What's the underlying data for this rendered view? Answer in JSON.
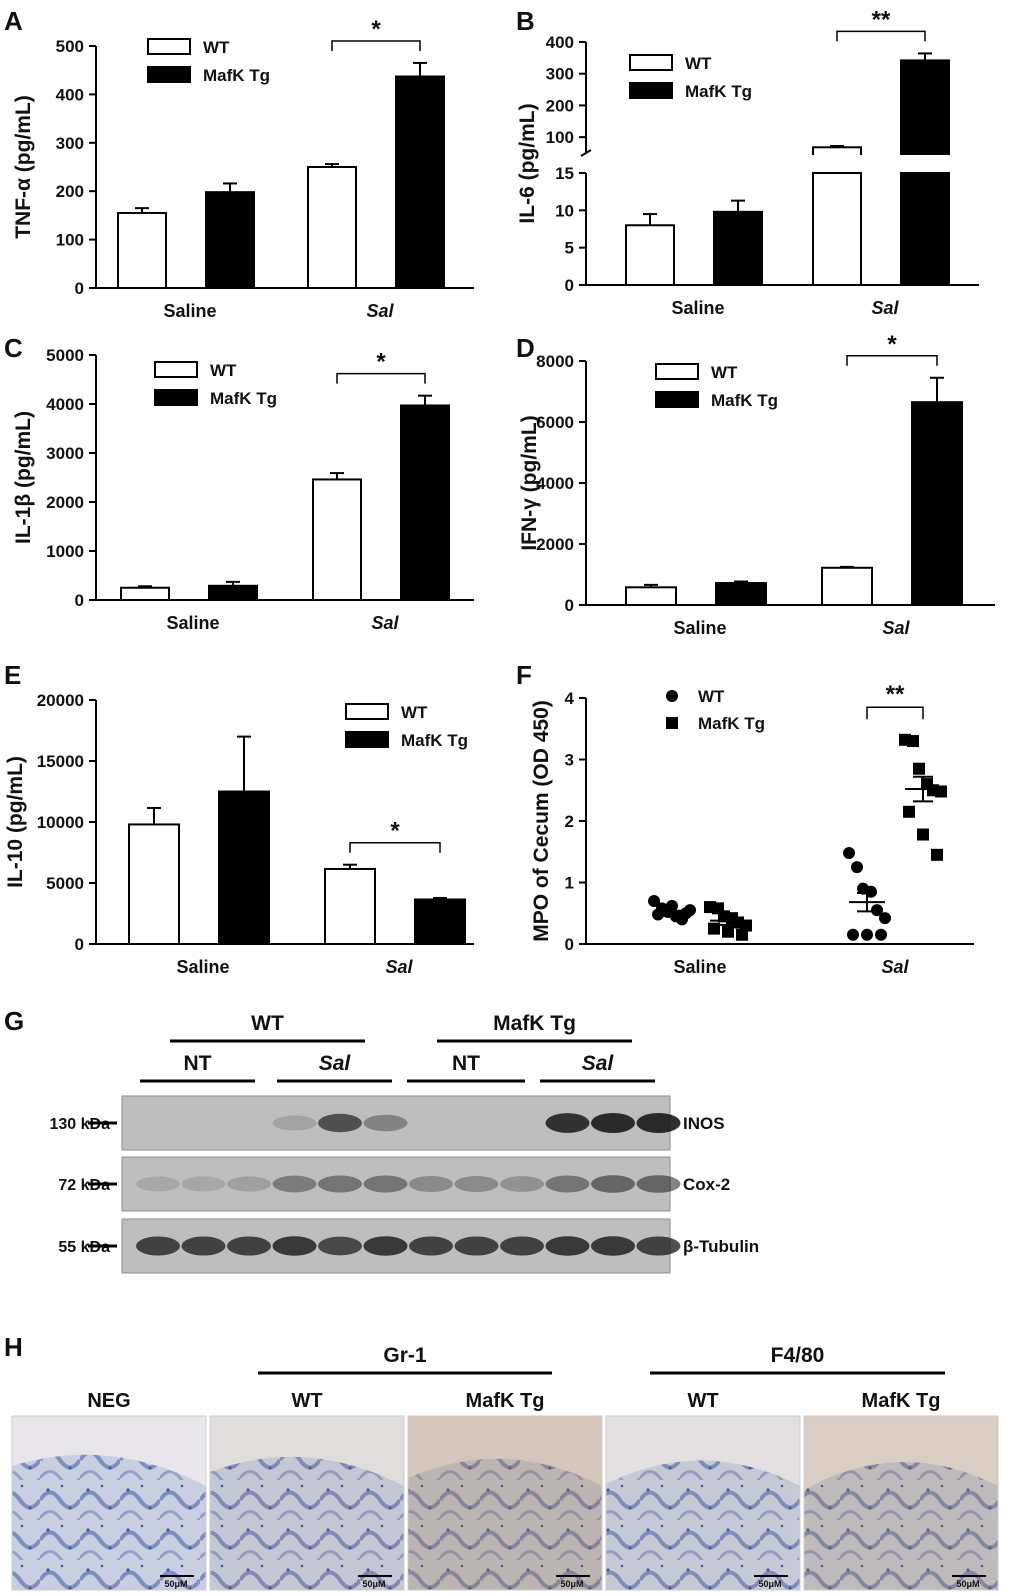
{
  "chart_data": [
    {
      "panel": "A",
      "type": "bar",
      "ylabel": "TNF-α (pg/mL)",
      "categories": [
        "Saline",
        "Sal"
      ],
      "legend": [
        "WT",
        "MafK Tg"
      ],
      "ylim": [
        0,
        500
      ],
      "yticks": [
        0,
        100,
        200,
        300,
        400,
        500
      ],
      "series": [
        {
          "name": "WT",
          "values": [
            155,
            250
          ],
          "errors": [
            10,
            6
          ],
          "fill": "#ffffff"
        },
        {
          "name": "MafK Tg",
          "values": [
            198,
            437
          ],
          "errors": [
            18,
            28
          ],
          "fill": "#000000"
        }
      ],
      "significance": [
        {
          "category": "Sal",
          "label": "*"
        }
      ]
    },
    {
      "panel": "B",
      "type": "bar",
      "ylabel": "IL-6 (pg/mL)",
      "categories": [
        "Saline",
        "Sal"
      ],
      "legend": [
        "WT",
        "MafK Tg"
      ],
      "broken_axis": {
        "lower": [
          0,
          15
        ],
        "upper": [
          50,
          400
        ]
      },
      "yticks_lower": [
        0,
        5,
        10,
        15
      ],
      "yticks_upper": [
        100,
        200,
        300,
        400
      ],
      "series": [
        {
          "name": "WT",
          "values": [
            8,
            68
          ],
          "errors": [
            1.5,
            4
          ],
          "fill": "#ffffff"
        },
        {
          "name": "MafK Tg",
          "values": [
            9.8,
            342
          ],
          "errors": [
            1.5,
            22
          ],
          "fill": "#000000"
        }
      ],
      "significance": [
        {
          "category": "Sal",
          "label": "**"
        }
      ]
    },
    {
      "panel": "C",
      "type": "bar",
      "ylabel": "IL-1β (pg/mL)",
      "categories": [
        "Saline",
        "Sal"
      ],
      "legend": [
        "WT",
        "MafK Tg"
      ],
      "ylim": [
        0,
        5000
      ],
      "yticks": [
        0,
        1000,
        2000,
        3000,
        4000,
        5000
      ],
      "series": [
        {
          "name": "WT",
          "values": [
            250,
            2460
          ],
          "errors": [
            30,
            130
          ],
          "fill": "#ffffff"
        },
        {
          "name": "MafK Tg",
          "values": [
            290,
            3970
          ],
          "errors": [
            80,
            200
          ],
          "fill": "#000000"
        }
      ],
      "significance": [
        {
          "category": "Sal",
          "label": "*"
        }
      ]
    },
    {
      "panel": "D",
      "type": "bar",
      "ylabel": "IFN-γ (pg/mL)",
      "categories": [
        "Saline",
        "Sal"
      ],
      "legend": [
        "WT",
        "MafK Tg"
      ],
      "ylim": [
        0,
        8000
      ],
      "yticks": [
        0,
        2000,
        4000,
        6000,
        8000
      ],
      "series": [
        {
          "name": "WT",
          "values": [
            580,
            1220
          ],
          "errors": [
            80,
            30
          ],
          "fill": "#ffffff"
        },
        {
          "name": "MafK Tg",
          "values": [
            720,
            6650
          ],
          "errors": [
            50,
            800
          ],
          "fill": "#000000"
        }
      ],
      "significance": [
        {
          "category": "Sal",
          "label": "*"
        }
      ]
    },
    {
      "panel": "E",
      "type": "bar",
      "ylabel": "IL-10 (pg/mL)",
      "categories": [
        "Saline",
        "Sal"
      ],
      "legend": [
        "WT",
        "MafK Tg"
      ],
      "ylim": [
        0,
        20000
      ],
      "yticks": [
        0,
        5000,
        10000,
        15000,
        20000
      ],
      "series": [
        {
          "name": "WT",
          "values": [
            9800,
            6150
          ],
          "errors": [
            1350,
            350
          ],
          "fill": "#ffffff"
        },
        {
          "name": "MafK Tg",
          "values": [
            12500,
            3650
          ],
          "errors": [
            4500,
            120
          ],
          "fill": "#000000"
        }
      ],
      "significance": [
        {
          "category": "Sal",
          "label": "*"
        }
      ]
    },
    {
      "panel": "F",
      "type": "scatter",
      "ylabel": "MPO of Cecum (OD 450)",
      "categories": [
        "Saline",
        "Sal"
      ],
      "legend": [
        "WT",
        "MafK Tg"
      ],
      "ylim": [
        0,
        4
      ],
      "yticks": [
        0,
        1,
        2,
        3,
        4
      ],
      "series": [
        {
          "name": "WT",
          "marker": "circle",
          "points": [
            {
              "category": "Saline",
              "values": [
                0.7,
                0.58,
                0.52,
                0.45,
                0.4,
                0.55,
                0.48,
                0.62,
                0.5
              ]
            },
            {
              "category": "Sal",
              "values": [
                1.48,
                1.25,
                0.9,
                0.85,
                0.55,
                0.42,
                0.15,
                0.15,
                0.15
              ]
            }
          ],
          "mean": [
            0.5,
            0.68
          ],
          "sem": [
            0.04,
            0.15
          ]
        },
        {
          "name": "MafK Tg",
          "marker": "square",
          "points": [
            {
              "category": "Saline",
              "values": [
                0.6,
                0.58,
                0.45,
                0.42,
                0.35,
                0.3,
                0.25,
                0.2,
                0.15
              ]
            },
            {
              "category": "Sal",
              "values": [
                3.32,
                3.3,
                2.85,
                2.6,
                2.5,
                2.48,
                2.15,
                1.78,
                1.45
              ]
            }
          ],
          "mean": [
            0.38,
            2.52
          ],
          "sem": [
            0.07,
            0.2
          ]
        }
      ],
      "significance": [
        {
          "category": "Sal",
          "label": "**"
        }
      ]
    }
  ],
  "panel_labels": {
    "A": "A",
    "B": "B",
    "C": "C",
    "D": "D",
    "E": "E",
    "F": "F",
    "G": "G",
    "H": "H"
  },
  "western": {
    "groups": [
      {
        "label": "WT"
      },
      {
        "label": "MafK Tg"
      }
    ],
    "subgroups": [
      {
        "label": "NT",
        "italic": false
      },
      {
        "label": "Sal",
        "italic": true
      },
      {
        "label": "NT",
        "italic": false
      },
      {
        "label": "Sal",
        "italic": true
      }
    ],
    "blots": [
      {
        "marker": "130 kDa",
        "protein": "INOS",
        "intensity": [
          0,
          0,
          0,
          0.18,
          0.75,
          0.4,
          0,
          0,
          0,
          0.95,
          1.0,
          1.0
        ]
      },
      {
        "marker": "72 kDa",
        "protein": "Cox-2",
        "intensity": [
          0.15,
          0.15,
          0.2,
          0.45,
          0.5,
          0.5,
          0.35,
          0.35,
          0.3,
          0.5,
          0.6,
          0.6
        ]
      },
      {
        "marker": "55 kDa",
        "protein": "β-Tubulin",
        "intensity": [
          0.85,
          0.85,
          0.85,
          0.9,
          0.8,
          0.9,
          0.85,
          0.85,
          0.85,
          0.9,
          0.9,
          0.85
        ]
      }
    ]
  },
  "histology": {
    "groups": [
      {
        "label": "Gr-1"
      },
      {
        "label": "F4/80"
      }
    ],
    "panels": [
      {
        "label": "NEG",
        "scale": "50μM",
        "stain": 0.0
      },
      {
        "label": "WT",
        "scale": "50μM",
        "stain": 0.2
      },
      {
        "label": "MafK Tg",
        "scale": "50μM",
        "stain": 0.75
      },
      {
        "label": "WT",
        "scale": "50μM",
        "stain": 0.15
      },
      {
        "label": "MafK Tg",
        "scale": "50μM",
        "stain": 0.6
      }
    ]
  }
}
